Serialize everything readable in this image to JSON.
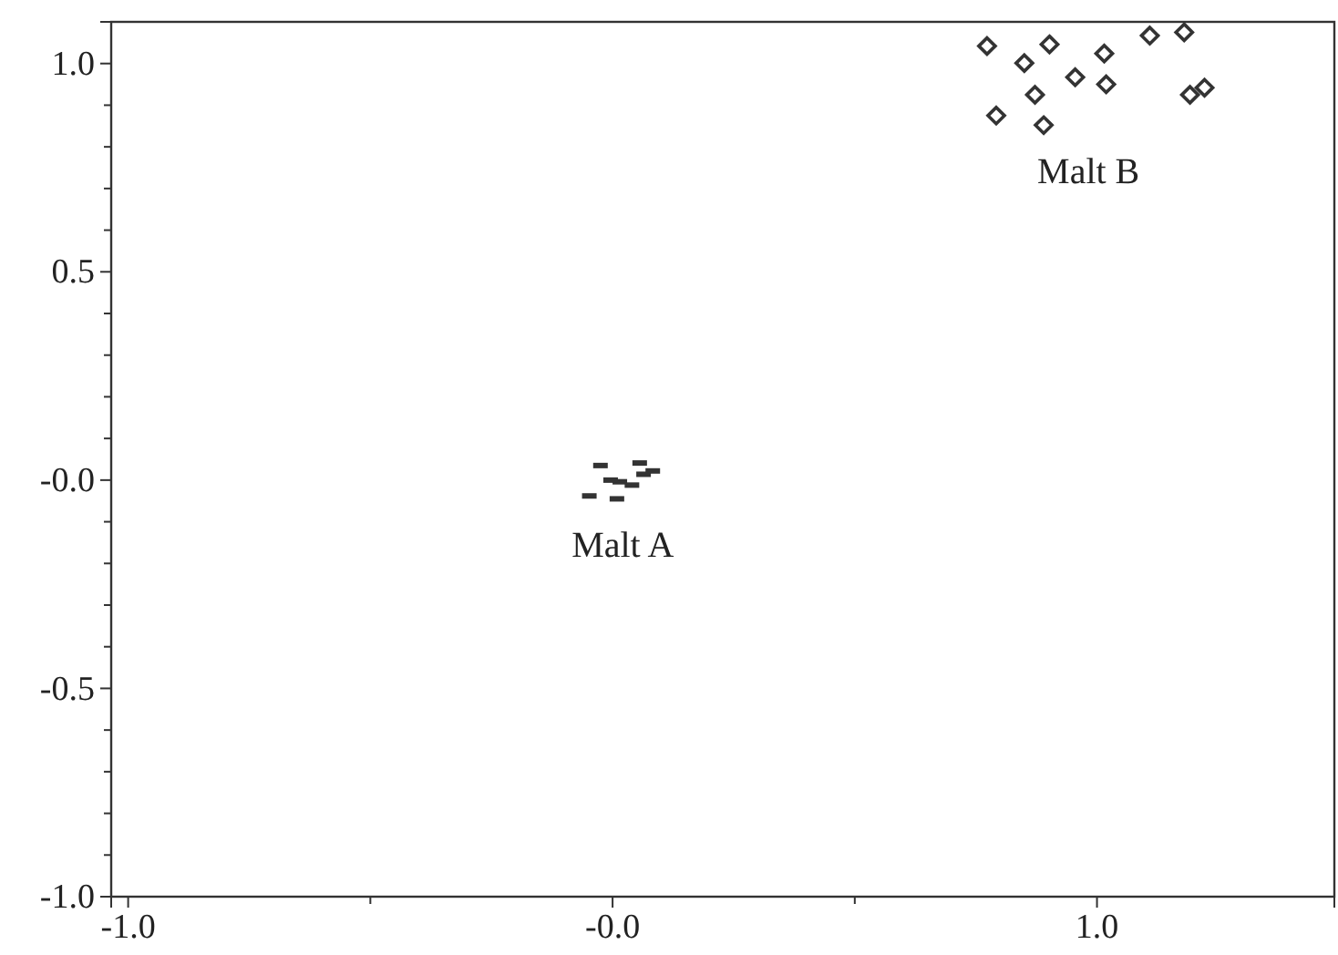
{
  "chart_data": {
    "type": "scatter",
    "xlim": [
      -1.035,
      1.49
    ],
    "ylim": [
      -1.0,
      1.1
    ],
    "xticks": [
      {
        "value": -1,
        "label": "-1.0"
      },
      {
        "value": -0.5,
        "label": null
      },
      {
        "value": 0,
        "label": "-0.0"
      },
      {
        "value": 0.5,
        "label": null
      },
      {
        "value": 1,
        "label": "1.0"
      }
    ],
    "yticks": [
      {
        "value": -1,
        "label": "-1.0"
      },
      {
        "value": -0.9,
        "label": null
      },
      {
        "value": -0.8,
        "label": null
      },
      {
        "value": -0.7,
        "label": null
      },
      {
        "value": -0.6,
        "label": null
      },
      {
        "value": -0.5,
        "label": "-0.5"
      },
      {
        "value": -0.4,
        "label": null
      },
      {
        "value": -0.3,
        "label": null
      },
      {
        "value": -0.2,
        "label": null
      },
      {
        "value": -0.1,
        "label": null
      },
      {
        "value": 0,
        "label": "-0.0"
      },
      {
        "value": 0.1,
        "label": null
      },
      {
        "value": 0.2,
        "label": null
      },
      {
        "value": 0.3,
        "label": null
      },
      {
        "value": 0.4,
        "label": null
      },
      {
        "value": 0.5,
        "label": "0.5"
      },
      {
        "value": 0.6,
        "label": null
      },
      {
        "value": 0.7,
        "label": null
      },
      {
        "value": 0.8,
        "label": null
      },
      {
        "value": 0.9,
        "label": null
      },
      {
        "value": 1,
        "label": "1.0"
      }
    ],
    "grid": false,
    "legend": false,
    "series": [
      {
        "name": "Malt A",
        "color": "#333333",
        "marker": "square",
        "x": [
          -0.025,
          0.056,
          0.015,
          0.064,
          0.083,
          -0.048,
          0.009,
          0.04,
          -0.004
        ],
        "values": [
          0.035,
          0.041,
          -0.004,
          0.014,
          0.022,
          -0.038,
          -0.045,
          -0.012,
          0.0
        ]
      },
      {
        "name": "Malt B",
        "color": "#333333",
        "marker": "diamond",
        "x": [
          0.773,
          0.902,
          0.85,
          1.015,
          1.109,
          1.18,
          0.955,
          1.019,
          0.872,
          1.192,
          1.222,
          0.792,
          0.89
        ],
        "values": [
          1.042,
          1.046,
          1.001,
          1.024,
          1.067,
          1.075,
          0.967,
          0.95,
          0.925,
          0.925,
          0.942,
          0.875,
          0.852
        ]
      }
    ]
  }
}
